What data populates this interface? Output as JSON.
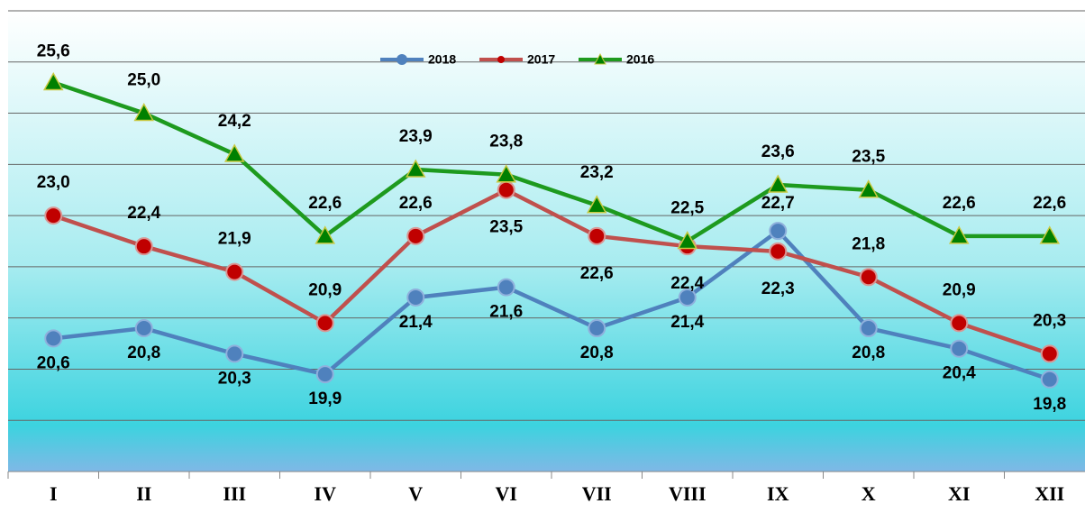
{
  "chart_data": {
    "type": "line",
    "categories": [
      "I",
      "II",
      "III",
      "IV",
      "V",
      "VI",
      "VII",
      "VIII",
      "IX",
      "X",
      "XI",
      "XII"
    ],
    "series": [
      {
        "name": "2018",
        "color": "#4f81bd",
        "marker": "circle",
        "values": [
          20.6,
          20.8,
          20.3,
          19.9,
          21.4,
          21.6,
          20.8,
          21.4,
          22.7,
          20.8,
          20.4,
          19.8
        ],
        "value_labels": [
          "20,6",
          "20,8",
          "20,3",
          "19,9",
          "21,4",
          "21,6",
          "20,8",
          "21,4",
          "22,7",
          "20,8",
          "20,4",
          "19,8"
        ]
      },
      {
        "name": "2017",
        "color": "#c0504d",
        "marker": "circle",
        "values": [
          23.0,
          22.4,
          21.9,
          20.9,
          22.6,
          23.5,
          22.6,
          22.4,
          22.3,
          21.8,
          20.9,
          20.3
        ],
        "value_labels": [
          "23,0",
          "22,4",
          "21,9",
          "20,9",
          "22,6",
          "23,5",
          "22,6",
          "22,4",
          "22,3",
          "21,8",
          "20,9",
          "20,3"
        ]
      },
      {
        "name": "2016",
        "color": "#1e9a1e",
        "marker": "triangle",
        "values": [
          25.6,
          25.0,
          24.2,
          22.6,
          23.9,
          23.8,
          23.2,
          22.5,
          23.6,
          23.5,
          22.6,
          22.6
        ],
        "value_labels": [
          "25,6",
          "25,0",
          "24,2",
          "22,6",
          "23,9",
          "23,8",
          "23,2",
          "22,5",
          "23,6",
          "23,5",
          "22,6",
          "22,6"
        ]
      }
    ],
    "ylim": [
      18,
      27
    ],
    "yticks": [
      18,
      19,
      20,
      21,
      22,
      23,
      24,
      25,
      26,
      27
    ],
    "grid": true,
    "legend": "top"
  }
}
